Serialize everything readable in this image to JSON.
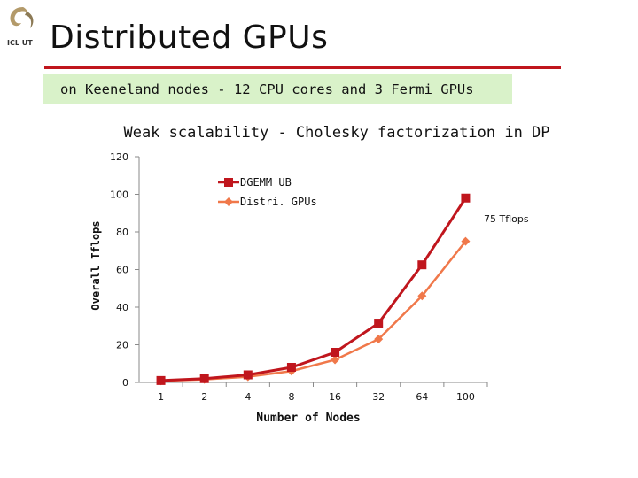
{
  "slide": {
    "title": "Distributed GPUs",
    "subtitle": "on Keeneland nodes - 12 CPU cores and 3 Fermi GPUs",
    "logo_text": "ICL UT"
  },
  "colors": {
    "accent": "#c0161d",
    "subtitle_bg": "#d9f2c9",
    "series_ub": "#c0161d",
    "series_distri": "#f0784a"
  },
  "chart_data": {
    "type": "line",
    "title": "Weak scalability - Cholesky factorization in DP",
    "xlabel": "Number of Nodes",
    "ylabel": "Overall Tflops",
    "categories": [
      "1",
      "2",
      "4",
      "8",
      "16",
      "32",
      "64",
      "100"
    ],
    "ylim": [
      0,
      120
    ],
    "yticks": [
      0,
      20,
      40,
      60,
      80,
      100,
      120
    ],
    "grid": false,
    "legend": "top-right",
    "series": [
      {
        "name": "DGEMM UB",
        "values": [
          1,
          2,
          4,
          8,
          16,
          31.5,
          62.5,
          98
        ],
        "marker": "square"
      },
      {
        "name": "Distri. GPUs",
        "values": [
          0.8,
          1.6,
          3,
          6,
          12,
          23,
          46,
          75
        ],
        "marker": "diamond"
      }
    ],
    "annotations": [
      {
        "text": "75 Tflops"
      }
    ]
  }
}
